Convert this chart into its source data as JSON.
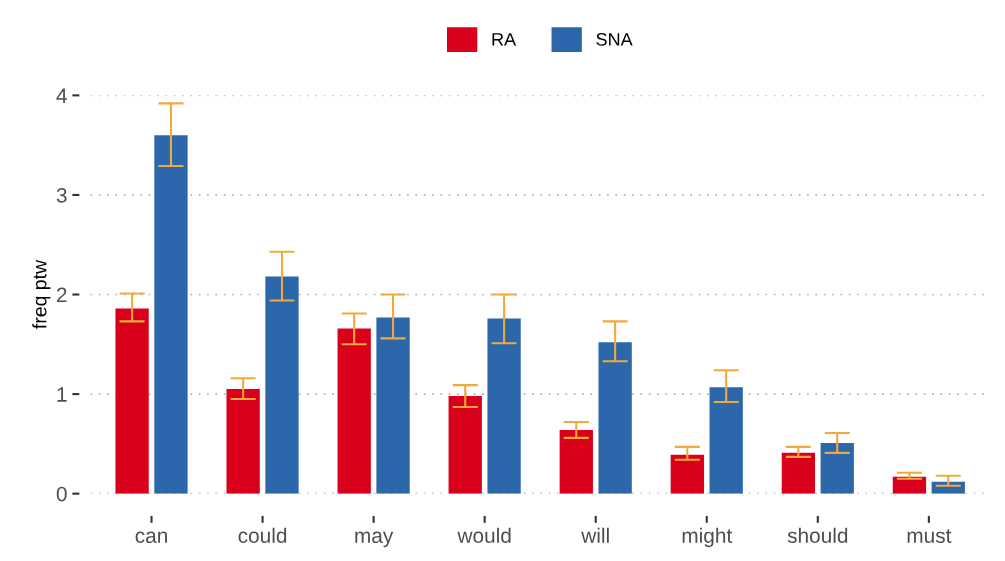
{
  "chart_data": {
    "type": "bar",
    "ylabel": "freq ptw",
    "categories": [
      "can",
      "could",
      "may",
      "would",
      "will",
      "might",
      "should",
      "must"
    ],
    "series": [
      {
        "name": "RA",
        "color": "#d9001b",
        "values": [
          1.86,
          1.05,
          1.66,
          0.98,
          0.64,
          0.39,
          0.41,
          0.17
        ],
        "errors": [
          [
            1.73,
            2.01
          ],
          [
            0.95,
            1.16
          ],
          [
            1.5,
            1.81
          ],
          [
            0.87,
            1.09
          ],
          [
            0.56,
            0.72
          ],
          [
            0.34,
            0.47
          ],
          [
            0.37,
            0.47
          ],
          [
            0.15,
            0.21
          ]
        ]
      },
      {
        "name": "SNA",
        "color": "#2c67ab",
        "values": [
          3.6,
          2.18,
          1.77,
          1.76,
          1.52,
          1.07,
          0.51,
          0.12
        ],
        "errors": [
          [
            3.29,
            3.92
          ],
          [
            1.94,
            2.43
          ],
          [
            1.56,
            2.0
          ],
          [
            1.51,
            2.0
          ],
          [
            1.33,
            1.73
          ],
          [
            0.92,
            1.24
          ],
          [
            0.41,
            0.61
          ],
          [
            0.08,
            0.18
          ]
        ]
      }
    ],
    "ylim": [
      0,
      4
    ],
    "yticks": [
      0,
      1,
      2,
      3,
      4
    ],
    "grid": "y",
    "legend": "top"
  }
}
